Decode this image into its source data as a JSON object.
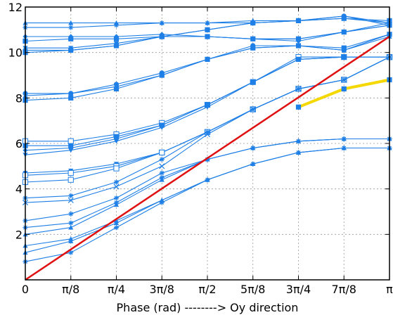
{
  "chart_data": {
    "type": "line",
    "title": "",
    "xlabel": "Phase (rad) --------> Oy direction",
    "ylabel": "",
    "xlim": [
      0,
      3.14159
    ],
    "ylim": [
      0,
      12
    ],
    "grid": true,
    "x_ticks": [
      {
        "value": 0,
        "label": "0"
      },
      {
        "value": 0.3927,
        "label": "π/8"
      },
      {
        "value": 0.7854,
        "label": "π/4"
      },
      {
        "value": 1.1781,
        "label": "3π/8"
      },
      {
        "value": 1.5708,
        "label": "π/2"
      },
      {
        "value": 1.9635,
        "label": "5π/8"
      },
      {
        "value": 2.3562,
        "label": "3π/4"
      },
      {
        "value": 2.7489,
        "label": "7π/8"
      },
      {
        "value": 3.1416,
        "label": "π"
      }
    ],
    "y_ticks": [
      {
        "value": 2,
        "label": "2"
      },
      {
        "value": 4,
        "label": "4"
      },
      {
        "value": 6,
        "label": "6"
      },
      {
        "value": 8,
        "label": "8"
      },
      {
        "value": 10,
        "label": "10"
      },
      {
        "value": 12,
        "label": "12"
      }
    ],
    "series": [
      {
        "color": "#1e7fe6",
        "marker": "triangle",
        "x": [
          0,
          0.3927,
          0.7854,
          1.1781,
          1.5708,
          1.9635,
          2.3562,
          2.7489,
          3.1416
        ],
        "y": [
          11.3,
          11.3,
          11.3,
          11.3,
          11.3,
          11.4,
          11.4,
          11.5,
          11.3
        ]
      },
      {
        "color": "#1e7fe6",
        "marker": "star",
        "x": [
          0,
          0.3927,
          0.7854,
          1.1781,
          1.5708,
          1.9635,
          2.3562,
          2.7489,
          3.1416
        ],
        "y": [
          11.1,
          11.1,
          11.2,
          11.3,
          11.3,
          11.3,
          11.4,
          11.6,
          11.2
        ]
      },
      {
        "color": "#1e7fe6",
        "marker": "diamond",
        "x": [
          0,
          0.3927,
          0.7854,
          1.1781,
          1.5708,
          1.9635,
          2.3562,
          2.7489,
          3.1416
        ],
        "y": [
          10.7,
          10.7,
          10.7,
          10.8,
          10.7,
          10.6,
          10.5,
          10.9,
          11.3
        ]
      },
      {
        "color": "#1e7fe6",
        "marker": "square",
        "x": [
          0,
          0.3927,
          0.7854,
          1.1781,
          1.5708,
          1.9635,
          2.3562,
          2.7489,
          3.1416
        ],
        "y": [
          10.5,
          10.6,
          10.6,
          10.7,
          10.7,
          10.6,
          10.6,
          10.9,
          11.2
        ]
      },
      {
        "color": "#1e7fe6",
        "marker": "triangle-down",
        "x": [
          0,
          0.3927,
          0.7854,
          1.1781,
          1.5708,
          1.9635,
          2.3562,
          2.7489,
          3.1416
        ],
        "y": [
          10.2,
          10.2,
          10.4,
          10.7,
          10.7,
          10.6,
          10.6,
          10.9,
          11.2
        ]
      },
      {
        "color": "#1e7fe6",
        "marker": "circle",
        "x": [
          0,
          0.3927,
          0.7854,
          1.1781,
          1.5708,
          1.9635,
          2.3562,
          2.7489,
          3.1416
        ],
        "y": [
          10.1,
          10.1,
          10.3,
          10.7,
          11.0,
          11.3,
          11.4,
          11.6,
          11.3
        ]
      },
      {
        "color": "#1e7fe6",
        "marker": "square",
        "x": [
          0,
          0.3927,
          0.7854,
          1.1781,
          1.5708,
          1.9635,
          2.3562,
          2.7489,
          3.1416
        ],
        "y": [
          10.0,
          10.1,
          10.3,
          10.7,
          11.0,
          11.3,
          11.4,
          11.5,
          11.4
        ]
      },
      {
        "color": "#1e7fe6",
        "marker": "circle",
        "x": [
          0,
          0.3927,
          0.7854,
          1.1781,
          1.5708,
          1.9635,
          2.3562,
          2.7489,
          3.1416
        ],
        "y": [
          8.2,
          8.2,
          8.6,
          9.1,
          9.7,
          10.3,
          10.3,
          10.1,
          10.8
        ]
      },
      {
        "color": "#1e7fe6",
        "marker": "triangle",
        "x": [
          0,
          0.3927,
          0.7854,
          1.1781,
          1.5708,
          1.9635,
          2.3562,
          2.7489,
          3.1416
        ],
        "y": [
          8.1,
          8.2,
          8.5,
          9.0,
          9.7,
          10.2,
          10.3,
          10.1,
          10.7
        ]
      },
      {
        "color": "#1e7fe6",
        "marker": "square",
        "x": [
          0,
          0.3927,
          0.7854,
          1.1781,
          1.5708,
          1.9635,
          2.3562,
          2.7489,
          3.1416
        ],
        "y": [
          7.9,
          8.0,
          8.4,
          9.0,
          9.7,
          10.2,
          10.3,
          10.2,
          10.8
        ]
      },
      {
        "color": "#1e7fe6",
        "marker": "square-open",
        "x": [
          0,
          0.3927,
          0.7854,
          1.1781,
          1.5708,
          1.9635,
          2.3562,
          2.7489,
          3.1416
        ],
        "y": [
          6.1,
          6.1,
          6.4,
          6.9,
          7.7,
          8.7,
          9.8,
          9.8,
          9.8
        ]
      },
      {
        "color": "#1e7fe6",
        "marker": "square",
        "x": [
          0,
          0.3927,
          0.7854,
          1.1781,
          1.5708,
          1.9635,
          2.3562,
          2.7489,
          3.1416
        ],
        "y": [
          5.9,
          5.9,
          6.3,
          6.8,
          7.7,
          8.7,
          9.7,
          9.8,
          9.8
        ]
      },
      {
        "color": "#1e7fe6",
        "marker": "diamond",
        "x": [
          0,
          0.3927,
          0.7854,
          1.1781,
          1.5708,
          1.9635,
          2.3562,
          2.7489,
          3.1416
        ],
        "y": [
          5.7,
          5.8,
          6.2,
          6.8,
          7.7,
          8.7,
          9.7,
          9.8,
          9.8
        ]
      },
      {
        "color": "#1e7fe6",
        "marker": "triangle-down",
        "x": [
          0,
          0.3927,
          0.7854,
          1.1781,
          1.5708,
          1.9635,
          2.3562,
          2.7489,
          3.1416
        ],
        "y": [
          5.5,
          5.7,
          6.1,
          6.7,
          7.6,
          8.7,
          9.7,
          9.8,
          9.8
        ]
      },
      {
        "color": "#1e7fe6",
        "marker": "triangle-down",
        "x": [
          0,
          0.3927,
          0.7854,
          1.1781,
          1.5708,
          1.9635,
          2.3562,
          2.7489,
          3.1416
        ],
        "y": [
          4.7,
          4.8,
          5.1,
          5.6,
          6.5,
          7.5,
          8.4,
          8.8,
          9.8
        ]
      },
      {
        "color": "#1e7fe6",
        "marker": "square-open",
        "x": [
          0,
          0.3927,
          0.7854,
          1.1781,
          1.5708,
          1.9635,
          2.3562,
          2.7489,
          3.1416
        ],
        "y": [
          4.6,
          4.7,
          5.0,
          5.6,
          6.5,
          7.5,
          8.4,
          8.8,
          9.8
        ]
      },
      {
        "color": "#1e7fe6",
        "marker": "square-open",
        "x": [
          0,
          0.3927,
          0.7854,
          1.1781,
          1.5708,
          1.9635,
          2.3562,
          2.7489,
          3.1416
        ],
        "y": [
          4.3,
          4.4,
          4.9,
          5.6,
          6.5,
          7.5,
          8.4,
          8.8,
          9.8
        ]
      },
      {
        "color": "#1e7fe6",
        "marker": "star",
        "x": [
          0,
          0.3927,
          0.7854,
          1.1781,
          1.5708,
          1.9635,
          2.3562,
          2.7489,
          3.1416
        ],
        "y": [
          3.6,
          3.7,
          4.3,
          5.3,
          6.5,
          7.5,
          8.4,
          8.8,
          9.8
        ]
      },
      {
        "color": "#1e7fe6",
        "marker": "x",
        "x": [
          0,
          0.3927,
          0.7854,
          1.1781,
          1.5708,
          1.9635,
          2.3562,
          2.7489,
          3.1416
        ],
        "y": [
          3.4,
          3.5,
          4.1,
          5.0,
          6.4,
          7.5,
          8.4,
          8.8,
          9.8
        ]
      },
      {
        "color": "#1e7fe6",
        "marker": "star",
        "x": [
          0,
          0.3927,
          0.7854,
          1.1781,
          1.5708,
          1.9635,
          2.3562,
          2.7489,
          3.1416
        ],
        "y": [
          2.6,
          2.9,
          3.6,
          4.7,
          5.3,
          5.8,
          6.1,
          6.2,
          6.2
        ]
      },
      {
        "color": "#1e7fe6",
        "marker": "star",
        "x": [
          0,
          0.3927,
          0.7854,
          1.1781,
          1.5708,
          1.9635,
          2.3562,
          2.7489,
          3.1416
        ],
        "y": [
          2.3,
          2.5,
          3.4,
          4.5,
          5.3,
          5.8,
          6.1,
          6.2,
          6.2
        ]
      },
      {
        "color": "#1e7fe6",
        "marker": "triangle",
        "x": [
          0,
          0.3927,
          0.7854,
          1.1781,
          1.5708,
          1.9635,
          2.3562,
          2.7489,
          3.1416
        ],
        "y": [
          2.0,
          2.3,
          3.3,
          4.4,
          5.3,
          5.8,
          6.1,
          6.2,
          6.2
        ]
      },
      {
        "color": "#1e7fe6",
        "marker": "triangle",
        "x": [
          0,
          0.3927,
          0.7854,
          1.1781,
          1.5708,
          1.9635,
          2.3562,
          2.7489,
          3.1416
        ],
        "y": [
          1.5,
          1.8,
          2.6,
          3.5,
          4.4,
          5.1,
          5.6,
          5.8,
          5.8
        ]
      },
      {
        "color": "#1e7fe6",
        "marker": "triangle",
        "x": [
          0,
          0.3927,
          0.7854,
          1.1781,
          1.5708,
          1.9635,
          2.3562,
          2.7489,
          3.1416
        ],
        "y": [
          1.2,
          1.7,
          2.5,
          3.5,
          4.4,
          5.1,
          5.6,
          5.8,
          5.8
        ]
      },
      {
        "color": "#1e7fe6",
        "marker": "star",
        "x": [
          0,
          0.3927,
          0.7854,
          1.1781,
          1.5708,
          1.9635,
          2.3562,
          2.7489,
          3.1416
        ],
        "y": [
          0.8,
          1.2,
          2.3,
          3.4,
          4.4,
          5.1,
          5.6,
          5.8,
          5.8
        ]
      },
      {
        "color": "#f5d800",
        "marker": "square",
        "x": [
          2.3562,
          2.7489,
          3.1416
        ],
        "y": [
          7.6,
          8.4,
          8.8
        ],
        "width": 4
      },
      {
        "color": "#e01010",
        "marker": "none",
        "x": [
          0,
          3.1416
        ],
        "y": [
          0,
          10.7
        ],
        "width": 2.5
      }
    ]
  }
}
